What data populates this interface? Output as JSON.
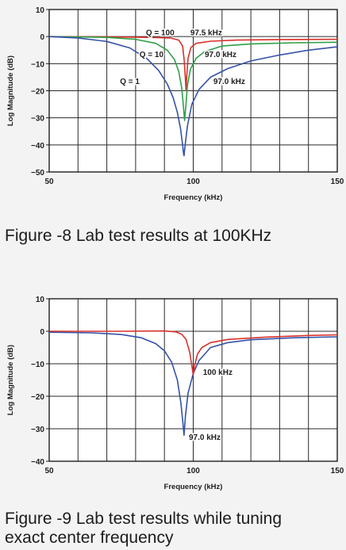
{
  "chart_data": [
    {
      "type": "line",
      "title": "",
      "xlabel": "Frequency (kHz)",
      "ylabel": "Log Magnitude (dB)",
      "xlim": [
        50,
        150
      ],
      "ylim": [
        -50,
        10
      ],
      "x_ticks": [
        50,
        100,
        150
      ],
      "y_ticks": [
        10,
        0,
        -10,
        -20,
        -30,
        -40,
        -50
      ],
      "y_tick_labels": [
        "10",
        "0",
        "−10",
        "−20",
        "−30",
        "−40",
        "−50"
      ],
      "grid": true,
      "series": [
        {
          "color": "#d8312b",
          "points": [
            [
              50,
              0
            ],
            [
              70,
              -0.1
            ],
            [
              85,
              -0.3
            ],
            [
              92,
              -0.5
            ],
            [
              95,
              -1.3
            ],
            [
              96.3,
              -3.5
            ],
            [
              96.9,
              -9
            ],
            [
              97.3,
              -16
            ],
            [
              97.5,
              -20
            ],
            [
              97.7,
              -15
            ],
            [
              98.2,
              -8
            ],
            [
              99.2,
              -4
            ],
            [
              101,
              -2.5
            ],
            [
              106,
              -1.7
            ],
            [
              115,
              -1.3
            ],
            [
              130,
              -1.1
            ],
            [
              150,
              -1
            ]
          ]
        },
        {
          "color": "#2fa048",
          "points": [
            [
              50,
              0
            ],
            [
              70,
              -0.3
            ],
            [
              80,
              -1
            ],
            [
              87,
              -2.5
            ],
            [
              91,
              -5
            ],
            [
              93.5,
              -8.5
            ],
            [
              95,
              -13
            ],
            [
              96,
              -19
            ],
            [
              96.6,
              -26
            ],
            [
              97,
              -31
            ],
            [
              97.4,
              -26
            ],
            [
              98,
              -18
            ],
            [
              99,
              -12
            ],
            [
              101,
              -8
            ],
            [
              104,
              -5.5
            ],
            [
              110,
              -3.5
            ],
            [
              120,
              -2.7
            ],
            [
              135,
              -2.3
            ],
            [
              150,
              -2.1
            ]
          ]
        },
        {
          "color": "#3552a8",
          "points": [
            [
              50,
              0
            ],
            [
              60,
              -0.5
            ],
            [
              70,
              -1.8
            ],
            [
              78,
              -4.2
            ],
            [
              84,
              -8.2
            ],
            [
              88,
              -12.5
            ],
            [
              91,
              -17.5
            ],
            [
              93,
              -22.5
            ],
            [
              94.5,
              -28
            ],
            [
              95.6,
              -34
            ],
            [
              96.3,
              -40
            ],
            [
              96.6,
              -43
            ],
            [
              96.8,
              -44
            ],
            [
              97.2,
              -40
            ],
            [
              98,
              -33
            ],
            [
              99.5,
              -25
            ],
            [
              102,
              -19.5
            ],
            [
              106,
              -15
            ],
            [
              112,
              -11.8
            ],
            [
              120,
              -9
            ],
            [
              130,
              -6.8
            ],
            [
              140,
              -5
            ],
            [
              150,
              -3.8
            ]
          ]
        }
      ],
      "annotations": [
        {
          "text": "Q = 100",
          "x": 88.5,
          "y": 1.5
        },
        {
          "text": "97.5 kHz",
          "x": 104.5,
          "y": 1.5
        },
        {
          "text": "Q = 10",
          "x": 85.5,
          "y": -6.5
        },
        {
          "text": "97.0 kHz",
          "x": 109.5,
          "y": -6.5
        },
        {
          "text": "Q = 1",
          "x": 78,
          "y": -16.5
        },
        {
          "text": "97.0 kHz",
          "x": 112.5,
          "y": -16.5
        }
      ]
    },
    {
      "type": "line",
      "title": "",
      "xlabel": "Frequency (kHz)",
      "ylabel": "Log Magnitude (dB)",
      "xlim": [
        50,
        150
      ],
      "ylim": [
        -40,
        10
      ],
      "x_ticks": [
        50,
        100,
        150
      ],
      "y_ticks": [
        10,
        0,
        -10,
        -20,
        -30,
        -40
      ],
      "y_tick_labels": [
        "10",
        "0",
        "−10",
        "−20",
        "−30",
        "−40"
      ],
      "grid": true,
      "series": [
        {
          "color": "#3552a8",
          "points": [
            [
              50,
              -0.3
            ],
            [
              65,
              -0.5
            ],
            [
              75,
              -1
            ],
            [
              82,
              -2
            ],
            [
              87,
              -3.8
            ],
            [
              90,
              -6
            ],
            [
              92.5,
              -9.5
            ],
            [
              94.5,
              -15
            ],
            [
              95.7,
              -22
            ],
            [
              96.4,
              -28
            ],
            [
              96.8,
              -32
            ],
            [
              97.3,
              -26
            ],
            [
              98.2,
              -19
            ],
            [
              100,
              -13
            ],
            [
              102,
              -9
            ],
            [
              106,
              -5
            ],
            [
              112,
              -3.5
            ],
            [
              120,
              -2.6
            ],
            [
              135,
              -2
            ],
            [
              150,
              -1.7
            ]
          ]
        },
        {
          "color": "#d8312b",
          "points": [
            [
              50,
              0
            ],
            [
              75,
              0
            ],
            [
              90,
              0.1
            ],
            [
              94,
              -0.2
            ],
            [
              96,
              -0.9
            ],
            [
              97.5,
              -2.5
            ],
            [
              98.8,
              -6.5
            ],
            [
              99.6,
              -11
            ],
            [
              100,
              -13.5
            ],
            [
              100.5,
              -10.5
            ],
            [
              101.5,
              -7
            ],
            [
              103,
              -5
            ],
            [
              106,
              -3.5
            ],
            [
              112,
              -2.5
            ],
            [
              125,
              -1.8
            ],
            [
              140,
              -1.3
            ],
            [
              150,
              -1.1
            ]
          ]
        }
      ],
      "annotations": [
        {
          "text": "100 kHz",
          "x": 108.5,
          "y": -12.5
        },
        {
          "text": "97.0 kHz",
          "x": 104,
          "y": -32.5
        }
      ]
    }
  ],
  "captions": [
    "Figure -8 Lab test results at 100KHz",
    "Figure -9 Lab test results while tuning\nexact center frequency"
  ]
}
